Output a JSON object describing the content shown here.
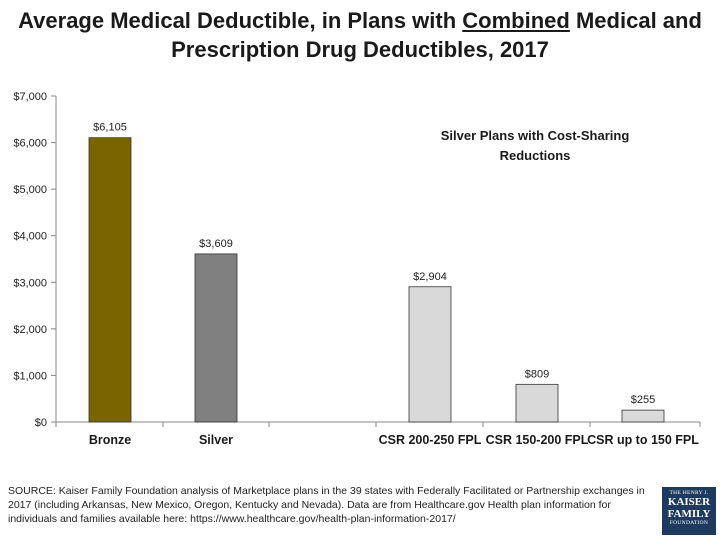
{
  "title": {
    "line1": "Average Medical Deductible, in Plans with",
    "underlined": "Combined",
    "line1_end": "Medical and",
    "line2": "Prescription Drug Deductibles, 2017"
  },
  "annotation": {
    "line1": "Silver Plans with Cost-Sharing",
    "line2": "Reductions"
  },
  "source_note": "SOURCE: Kaiser Family Foundation analysis of Marketplace plans in the 39 states with Federally Facilitated or Partnership exchanges in 2017 (including Arkansas, New Mexico, Oregon, Kentucky and Nevada).  Data are from Healthcare.gov Health plan information for individuals and families available here: https://www.healthcare.gov/health-plan-information-2017/",
  "logo": {
    "line1": "THE HENRY J.",
    "line2": "KAISER",
    "line3": "FAMILY",
    "line4": "FOUNDATION"
  },
  "colors": {
    "bronze": "#7a6400",
    "silver": "#808080",
    "csr": "#d9d9d9",
    "bar_outline": "#333333"
  },
  "chart_data": {
    "type": "bar",
    "categories": [
      "Bronze",
      "Silver",
      "CSR 200-250 FPL",
      "CSR 150-200 FPL",
      "CSR up to 150 FPL"
    ],
    "values": [
      6105,
      3609,
      2904,
      809,
      255
    ],
    "data_labels": [
      "$6,105",
      "$3,609",
      "$2,904",
      "$809",
      "$255"
    ],
    "bar_colors": [
      "#7a6400",
      "#808080",
      "#d9d9d9",
      "#d9d9d9",
      "#d9d9d9"
    ],
    "ylim": [
      0,
      7000
    ],
    "yticks": [
      0,
      1000,
      2000,
      3000,
      4000,
      5000,
      6000,
      7000
    ],
    "ytick_labels": [
      "$0",
      "$1,000",
      "$2,000",
      "$3,000",
      "$4,000",
      "$5,000",
      "$6,000",
      "$7,000"
    ],
    "xlabel": "",
    "ylabel": "",
    "grid": false,
    "legend": "none"
  }
}
